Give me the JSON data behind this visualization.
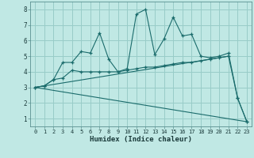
{
  "xlabel": "Humidex (Indice chaleur)",
  "bg_color": "#c0e8e4",
  "grid_color": "#98ccc8",
  "line_color": "#1a6b6b",
  "x_values": [
    0,
    1,
    2,
    3,
    4,
    5,
    6,
    7,
    8,
    9,
    10,
    11,
    12,
    13,
    14,
    15,
    16,
    17,
    18,
    19,
    20,
    21,
    22,
    23
  ],
  "line1": [
    3.0,
    3.1,
    3.5,
    4.6,
    4.6,
    5.3,
    5.2,
    6.5,
    4.8,
    4.0,
    4.2,
    7.7,
    8.0,
    5.1,
    6.1,
    7.5,
    6.3,
    6.4,
    5.0,
    4.9,
    5.0,
    5.2,
    2.3,
    0.8
  ],
  "line2": [
    3.0,
    3.1,
    3.5,
    3.6,
    4.1,
    4.0,
    4.0,
    4.0,
    4.0,
    4.0,
    4.1,
    4.2,
    4.3,
    4.3,
    4.4,
    4.5,
    4.6,
    4.6,
    4.7,
    4.8,
    4.9,
    5.0,
    2.3,
    0.8
  ],
  "line3_x": [
    0,
    21
  ],
  "line3_y": [
    3.0,
    5.0
  ],
  "line4_x": [
    0,
    23
  ],
  "line4_y": [
    3.0,
    0.8
  ],
  "ylim": [
    0.5,
    8.5
  ],
  "xlim": [
    -0.5,
    23.5
  ],
  "yticks": [
    1,
    2,
    3,
    4,
    5,
    6,
    7,
    8
  ],
  "xticks": [
    0,
    1,
    2,
    3,
    4,
    5,
    6,
    7,
    8,
    9,
    10,
    11,
    12,
    13,
    14,
    15,
    16,
    17,
    18,
    19,
    20,
    21,
    22,
    23
  ]
}
